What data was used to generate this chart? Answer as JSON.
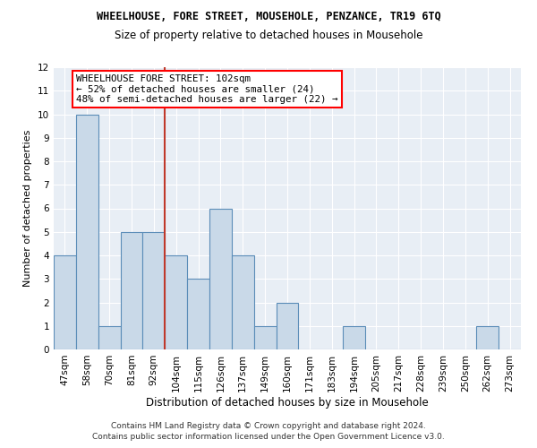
{
  "title": "WHEELHOUSE, FORE STREET, MOUSEHOLE, PENZANCE, TR19 6TQ",
  "subtitle": "Size of property relative to detached houses in Mousehole",
  "xlabel": "Distribution of detached houses by size in Mousehole",
  "ylabel": "Number of detached properties",
  "categories": [
    "47sqm",
    "58sqm",
    "70sqm",
    "81sqm",
    "92sqm",
    "104sqm",
    "115sqm",
    "126sqm",
    "137sqm",
    "149sqm",
    "160sqm",
    "171sqm",
    "183sqm",
    "194sqm",
    "205sqm",
    "217sqm",
    "228sqm",
    "239sqm",
    "250sqm",
    "262sqm",
    "273sqm"
  ],
  "values": [
    4,
    10,
    1,
    5,
    5,
    4,
    3,
    6,
    4,
    1,
    2,
    0,
    0,
    1,
    0,
    0,
    0,
    0,
    0,
    1,
    0
  ],
  "bar_color": "#c9d9e8",
  "bar_edge_color": "#5b8db8",
  "vline_color": "#c0392b",
  "annotation_line1": "WHEELHOUSE FORE STREET: 102sqm",
  "annotation_line2": "← 52% of detached houses are smaller (24)",
  "annotation_line3": "48% of semi-detached houses are larger (22) →",
  "ylim": [
    0,
    12
  ],
  "footer1": "Contains HM Land Registry data © Crown copyright and database right 2024.",
  "footer2": "Contains public sector information licensed under the Open Government Licence v3.0.",
  "title_fontsize": 8.5,
  "subtitle_fontsize": 8.5,
  "tick_fontsize": 7.5,
  "ylabel_fontsize": 8.0,
  "xlabel_fontsize": 8.5,
  "annotation_fontsize": 7.8,
  "footer_fontsize": 6.5
}
